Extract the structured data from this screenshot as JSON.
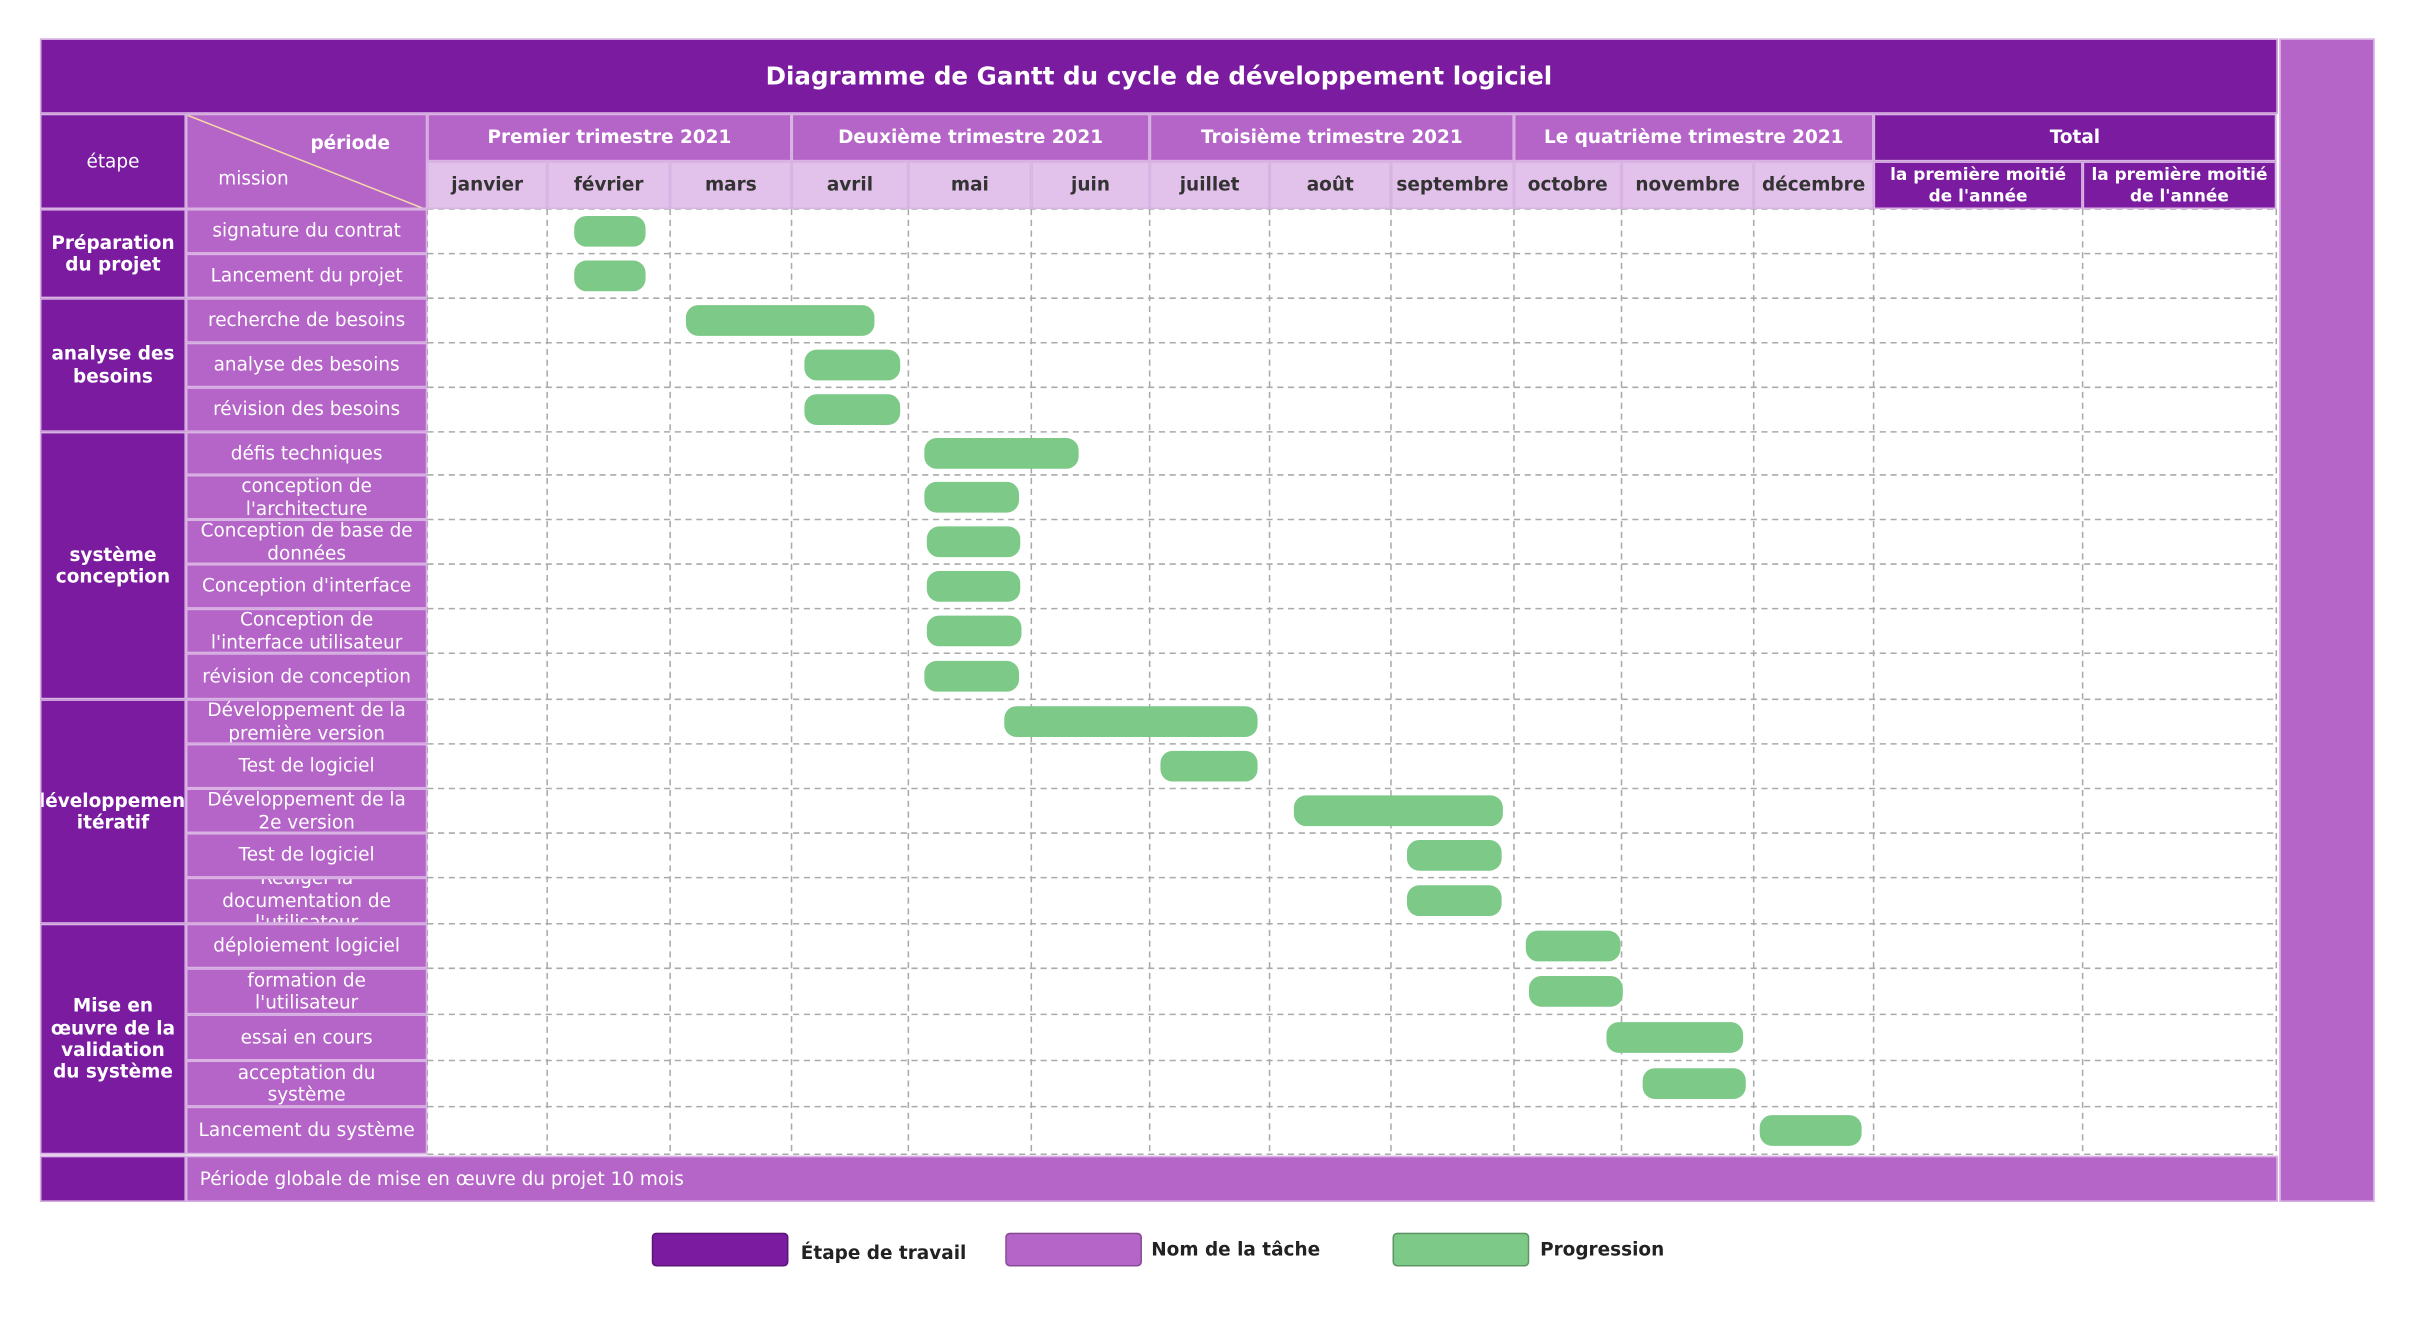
{
  "title": "Diagramme de Gantt du cycle de développement logiciel",
  "header": {
    "period_label": "période",
    "mission_label": "mission",
    "stage_label": "étape"
  },
  "quarters": [
    "Premier trimestre 2021",
    "Deuxième trimestre 2021",
    "Troisième trimestre 2021",
    "Le quatrième trimestre 2021",
    "Total"
  ],
  "months": [
    "janvier",
    "février",
    "mars",
    "avril",
    "mai",
    "juin",
    "juillet",
    "août",
    "septembre",
    "octobre",
    "novembre",
    "décembre"
  ],
  "totals": [
    "la première moitié de l'année",
    "la première moitié de l'année"
  ],
  "stages": [
    {
      "name": "Préparation du projet",
      "tasks": [
        {
          "name": "signature du contrat",
          "start": 1.22,
          "end": 1.8
        },
        {
          "name": "Lancement du projet",
          "start": 1.22,
          "end": 1.8
        }
      ]
    },
    {
      "name": "analyse des besoins",
      "tasks": [
        {
          "name": "recherche de besoins",
          "start": 2.13,
          "end": 3.71
        },
        {
          "name": "analyse des besoins",
          "start": 3.11,
          "end": 3.93
        },
        {
          "name": "révision des besoins",
          "start": 3.11,
          "end": 3.93
        }
      ]
    },
    {
      "name": "système conception",
      "tasks": [
        {
          "name": "défis techniques",
          "start": 4.13,
          "end": 5.4
        },
        {
          "name": "conception de l'architecture",
          "start": 4.13,
          "end": 4.9
        },
        {
          "name": "Conception de base de données",
          "start": 4.15,
          "end": 4.91
        },
        {
          "name": "Conception d'interface",
          "start": 4.15,
          "end": 4.91
        },
        {
          "name": "Conception de l'interface utilisateur",
          "start": 4.15,
          "end": 4.92
        },
        {
          "name": "révision de conception",
          "start": 4.13,
          "end": 4.9
        }
      ]
    },
    {
      "name": "développement itératif",
      "tasks": [
        {
          "name": "Développement de la première version",
          "start": 4.78,
          "end": 6.9
        },
        {
          "name": "Test de logiciel",
          "start": 6.09,
          "end": 6.9
        },
        {
          "name": "Développement de la 2e version",
          "start": 7.2,
          "end": 8.91
        },
        {
          "name": "Test de logiciel",
          "start": 8.13,
          "end": 8.9
        },
        {
          "name": "Rédiger la documentation de l'utilisateur",
          "start": 8.13,
          "end": 8.9
        }
      ]
    },
    {
      "name": "Mise en œuvre de la validation du système",
      "tasks": [
        {
          "name": "déploiement logiciel",
          "start": 9.11,
          "end": 9.99
        },
        {
          "name": "formation de l'utilisateur",
          "start": 9.14,
          "end": 10.01
        },
        {
          "name": "essai en cours",
          "start": 9.86,
          "end": 10.92
        },
        {
          "name": "acceptation du système",
          "start": 10.16,
          "end": 10.94
        },
        {
          "name": "Lancement du système",
          "start": 11.05,
          "end": 11.9
        }
      ]
    }
  ],
  "footer": "Période globale de mise en œuvre du projet 10 mois",
  "legend": [
    "Étape de travail",
    "Nom de la tâche",
    "Progression"
  ]
}
